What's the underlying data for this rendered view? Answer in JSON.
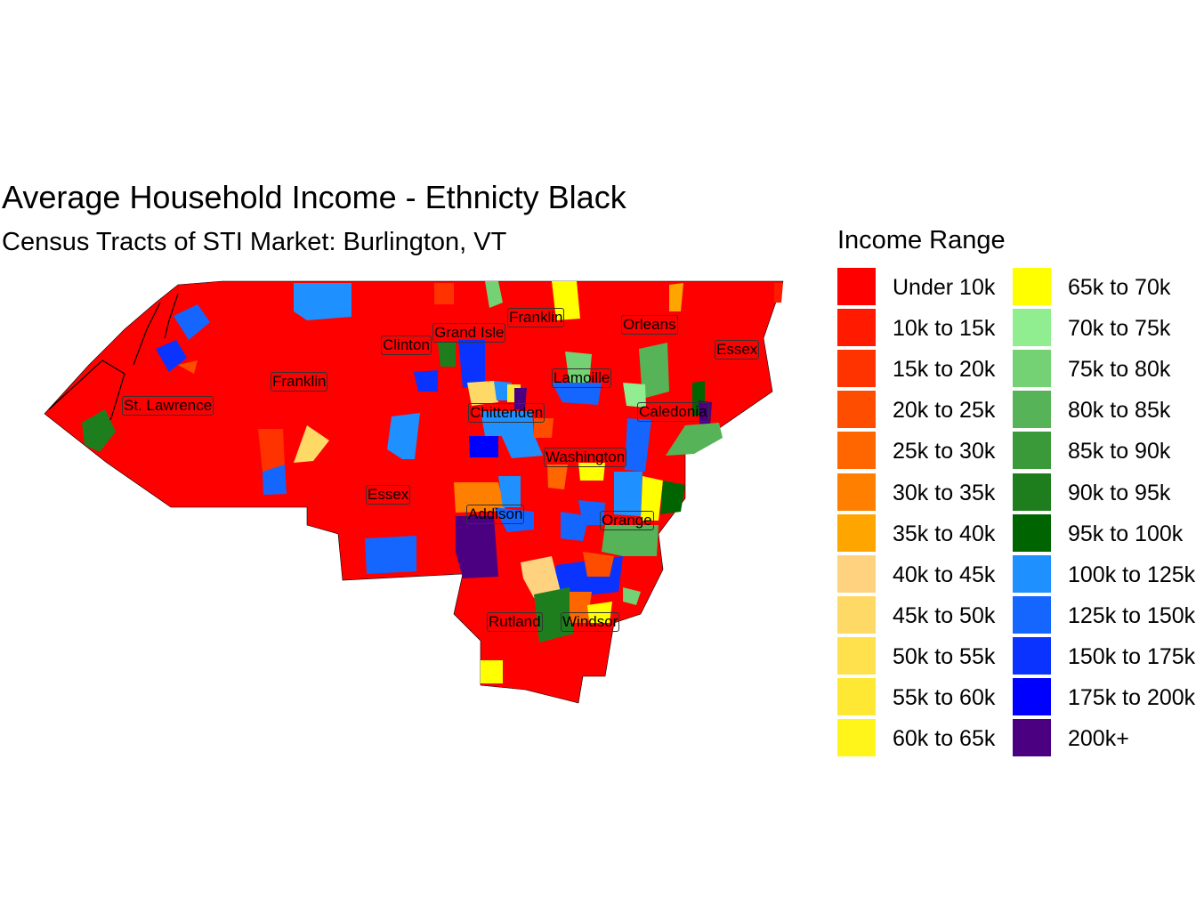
{
  "title": "Average Household Income - Ethnicty Black",
  "subtitle": "Census Tracts of STI Market: Burlington, VT",
  "legend": {
    "title": "Income Range",
    "items": [
      {
        "label": "Under 10k",
        "color": "#ff0000"
      },
      {
        "label": "10k to 15k",
        "color": "#ff1a00"
      },
      {
        "label": "15k to 20k",
        "color": "#ff3300"
      },
      {
        "label": "20k to 25k",
        "color": "#ff4d00"
      },
      {
        "label": "25k to 30k",
        "color": "#ff6600"
      },
      {
        "label": "30k to 35k",
        "color": "#ff8000"
      },
      {
        "label": "35k to 40k",
        "color": "#ffa500"
      },
      {
        "label": "40k to 45k",
        "color": "#ffd27f"
      },
      {
        "label": "45k to 50k",
        "color": "#ffd966"
      },
      {
        "label": "50k to 55k",
        "color": "#ffe14d"
      },
      {
        "label": "55k to 60k",
        "color": "#ffe833"
      },
      {
        "label": "60k to 65k",
        "color": "#fff51a"
      },
      {
        "label": "65k to 70k",
        "color": "#ffff00"
      },
      {
        "label": "70k to 75k",
        "color": "#90ee90"
      },
      {
        "label": "75k to 80k",
        "color": "#74d174"
      },
      {
        "label": "80k to 85k",
        "color": "#57b357"
      },
      {
        "label": "85k to 90k",
        "color": "#3a9a3a"
      },
      {
        "label": "90k to 95k",
        "color": "#1e7e1e"
      },
      {
        "label": "95k to 100k",
        "color": "#006400"
      },
      {
        "label": "100k to 125k",
        "color": "#1e90ff"
      },
      {
        "label": "125k to 150k",
        "color": "#1466ff"
      },
      {
        "label": "150k to 175k",
        "color": "#0a33ff"
      },
      {
        "label": "175k to 200k",
        "color": "#0000ff"
      },
      {
        "label": "200k+",
        "color": "#4b0082"
      }
    ]
  },
  "counties": [
    "St. Lawrence",
    "Franklin",
    "Clinton",
    "Grand Isle",
    "Franklin",
    "Orleans",
    "Essex",
    "Lamoille",
    "Chittenden",
    "Caledonia",
    "Washington",
    "Essex",
    "Addison",
    "Orange",
    "Rutland",
    "Windsor"
  ]
}
